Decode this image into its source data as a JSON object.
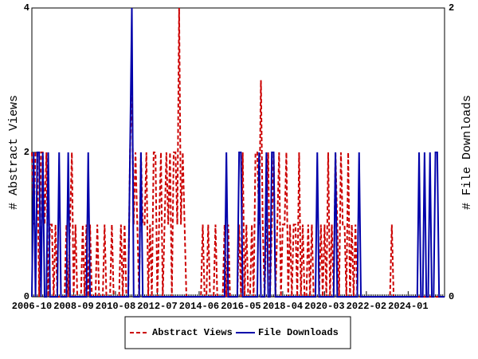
{
  "chart_data": {
    "type": "line",
    "x": [
      "2006-10",
      "2006-11",
      "2006-12",
      "2007-01",
      "2007-02",
      "2007-03",
      "2007-04",
      "2007-05",
      "2007-06",
      "2007-07",
      "2007-08",
      "2007-09",
      "2007-10",
      "2007-11",
      "2007-12",
      "2008-01",
      "2008-02",
      "2008-03",
      "2008-04",
      "2008-05",
      "2008-06",
      "2008-07",
      "2008-08",
      "2008-09",
      "2008-10",
      "2008-11",
      "2008-12",
      "2009-01",
      "2009-02",
      "2009-03",
      "2009-04",
      "2009-05",
      "2009-06",
      "2009-07",
      "2009-08",
      "2009-09",
      "2009-10",
      "2009-11",
      "2009-12",
      "2010-01",
      "2010-02",
      "2010-03",
      "2010-04",
      "2010-05",
      "2010-06",
      "2010-07",
      "2010-08",
      "2010-09",
      "2010-10",
      "2010-11",
      "2010-12",
      "2011-01",
      "2011-02",
      "2011-03",
      "2011-04",
      "2011-05",
      "2011-06",
      "2011-07",
      "2011-08",
      "2011-09",
      "2011-10",
      "2011-11",
      "2011-12",
      "2012-01",
      "2012-02",
      "2012-03",
      "2012-04",
      "2012-05",
      "2012-06",
      "2012-07",
      "2012-08",
      "2012-09",
      "2012-10",
      "2012-11",
      "2012-12",
      "2013-01",
      "2013-02",
      "2013-03",
      "2013-04",
      "2013-05",
      "2013-06",
      "2013-07",
      "2013-08",
      "2013-09",
      "2013-10",
      "2013-11",
      "2013-12",
      "2014-01",
      "2014-02",
      "2014-03",
      "2014-04",
      "2014-05",
      "2014-06",
      "2014-07",
      "2014-08",
      "2014-09",
      "2014-10",
      "2014-11",
      "2014-12",
      "2015-01",
      "2015-02",
      "2015-03",
      "2015-04",
      "2015-05",
      "2015-06",
      "2015-07",
      "2015-08",
      "2015-09",
      "2015-10",
      "2015-11",
      "2015-12",
      "2016-01",
      "2016-02",
      "2016-03",
      "2016-04",
      "2016-05",
      "2016-06",
      "2016-07",
      "2016-08",
      "2016-09",
      "2016-10",
      "2016-11",
      "2016-12",
      "2017-01",
      "2017-02",
      "2017-03",
      "2017-04",
      "2017-05",
      "2017-06",
      "2017-07",
      "2017-08",
      "2017-09",
      "2017-10",
      "2017-11",
      "2017-12",
      "2018-01",
      "2018-02",
      "2018-03",
      "2018-04",
      "2018-05",
      "2018-06",
      "2018-07",
      "2018-08",
      "2018-09",
      "2018-10",
      "2018-11",
      "2018-12",
      "2019-01",
      "2019-02",
      "2019-03",
      "2019-04",
      "2019-05",
      "2019-06",
      "2019-07",
      "2019-08",
      "2019-09",
      "2019-10",
      "2019-11",
      "2019-12",
      "2020-01",
      "2020-02",
      "2020-03",
      "2020-04",
      "2020-05",
      "2020-06",
      "2020-07",
      "2020-08",
      "2020-09",
      "2020-10",
      "2020-11",
      "2020-12",
      "2021-01",
      "2021-02",
      "2021-03",
      "2021-04",
      "2021-05",
      "2021-06",
      "2021-07",
      "2021-08",
      "2021-09",
      "2021-10",
      "2021-11",
      "2021-12",
      "2022-01",
      "2022-02",
      "2022-03",
      "2022-04",
      "2022-05",
      "2022-06",
      "2022-07",
      "2022-08",
      "2022-09",
      "2022-10",
      "2022-11",
      "2022-12",
      "2023-01",
      "2023-02",
      "2023-03",
      "2023-04",
      "2023-05",
      "2023-06",
      "2023-07",
      "2023-08",
      "2023-09",
      "2023-10",
      "2023-11",
      "2023-12",
      "2024-01",
      "2024-02",
      "2024-03",
      "2024-04",
      "2024-05",
      "2024-06",
      "2024-07",
      "2024-08",
      "2024-09",
      "2024-10",
      "2024-11",
      "2024-12",
      "2025-01",
      "2025-02",
      "2025-03",
      "2025-04",
      "2025-05",
      "2025-06",
      "2025-07",
      "2025-08",
      "2025-09"
    ],
    "xticks": [
      "2006-10",
      "2008-09",
      "2010-08",
      "2012-07",
      "2014-06",
      "2016-05",
      "2018-04",
      "2020-03",
      "2022-02",
      "2024-01"
    ],
    "ylabel": "# Abstract Views",
    "y2label": "# File Downloads",
    "ylim": [
      0,
      4
    ],
    "yticks": [
      0,
      2,
      4
    ],
    "y2lim": [
      0,
      2
    ],
    "y2ticks": [
      0,
      2
    ],
    "legend": "bottom",
    "series": [
      {
        "name": "Abstract Views",
        "color": "#cc0000",
        "dashed": true,
        "values": [
          2,
          1,
          2,
          2,
          0,
          2,
          2,
          1,
          2,
          0,
          1,
          1,
          0,
          1,
          0,
          0,
          0,
          0,
          0,
          1,
          0,
          1,
          2,
          0,
          1,
          0,
          0,
          0,
          1,
          0,
          1,
          0,
          1,
          0,
          0,
          0,
          1,
          0,
          0,
          0,
          1,
          0,
          0,
          0,
          1,
          0,
          0,
          0,
          0,
          1,
          0,
          1,
          0,
          0,
          2,
          3,
          1,
          2,
          1,
          0,
          2,
          1,
          1,
          2,
          0,
          1,
          0,
          2,
          2,
          0,
          1,
          2,
          0,
          1,
          2,
          1,
          2,
          0,
          2,
          2,
          1,
          4,
          1,
          2,
          1,
          0,
          0,
          0,
          0,
          0,
          0,
          0,
          0,
          0,
          1,
          0,
          0,
          1,
          0,
          0,
          0,
          1,
          0,
          0,
          0,
          0,
          1,
          0,
          1,
          0,
          0,
          0,
          0,
          0,
          1,
          0,
          2,
          0,
          1,
          0,
          0,
          1,
          0,
          2,
          2,
          1,
          3,
          1,
          0,
          1,
          2,
          0,
          1,
          2,
          0,
          1,
          2,
          0,
          1,
          1,
          2,
          0,
          1,
          0,
          1,
          1,
          0,
          2,
          0,
          1,
          0,
          0,
          1,
          0,
          1,
          0,
          0,
          0,
          0,
          1,
          0,
          1,
          0,
          2,
          0,
          1,
          0,
          2,
          1,
          0,
          2,
          1,
          1,
          0,
          2,
          0,
          1,
          0,
          1,
          0,
          0,
          0,
          0,
          0,
          0,
          0,
          0,
          0,
          0,
          0,
          0,
          0,
          0,
          0,
          0,
          0,
          0,
          0,
          1,
          0,
          0,
          0,
          0,
          0,
          0,
          0,
          0,
          0,
          0,
          0,
          0,
          0,
          0,
          0,
          0,
          0,
          0,
          0,
          0,
          0,
          0,
          0,
          0,
          0,
          0,
          0,
          0,
          0
        ]
      },
      {
        "name": "File Downloads",
        "color": "#0000aa",
        "axis": "y2",
        "values": [
          0,
          1,
          0,
          1,
          1,
          0,
          1,
          0,
          0,
          1,
          0,
          0,
          0,
          0,
          0,
          1,
          0,
          0,
          0,
          0,
          1,
          0,
          0,
          0,
          0,
          0,
          0,
          0,
          0,
          0,
          0,
          1,
          0,
          0,
          0,
          0,
          0,
          0,
          0,
          0,
          0,
          0,
          0,
          0,
          0,
          0,
          0,
          0,
          0,
          0,
          0,
          0,
          0,
          0,
          1,
          2,
          0,
          0,
          0,
          0,
          1,
          0,
          0,
          0,
          0,
          0,
          0,
          0,
          0,
          0,
          0,
          0,
          0,
          0,
          0,
          0,
          0,
          0,
          0,
          0,
          0,
          0,
          0,
          0,
          0,
          0,
          0,
          0,
          0,
          0,
          0,
          0,
          0,
          0,
          0,
          0,
          0,
          0,
          0,
          0,
          0,
          0,
          0,
          0,
          0,
          0,
          0,
          1,
          0,
          0,
          0,
          0,
          0,
          0,
          1,
          1,
          0,
          0,
          0,
          0,
          0,
          0,
          0,
          0,
          0,
          1,
          0,
          0,
          0,
          1,
          0,
          0,
          1,
          1,
          0,
          0,
          0,
          0,
          0,
          0,
          0,
          0,
          0,
          0,
          0,
          0,
          0,
          0,
          0,
          0,
          0,
          0,
          0,
          0,
          0,
          0,
          0,
          1,
          0,
          0,
          0,
          0,
          0,
          0,
          0,
          0,
          0,
          1,
          0,
          0,
          0,
          0,
          0,
          0,
          0,
          0,
          0,
          0,
          0,
          0,
          1,
          0,
          0,
          0,
          0,
          0,
          0,
          0,
          0,
          0,
          0,
          0,
          0,
          0,
          0,
          0,
          0,
          0,
          0,
          0,
          0,
          0,
          0,
          0,
          0,
          0,
          0,
          0,
          0,
          0,
          0,
          0,
          0,
          1,
          0,
          0,
          1,
          0,
          0,
          1,
          0,
          0,
          1,
          1,
          0,
          0,
          0,
          0
        ]
      }
    ]
  }
}
